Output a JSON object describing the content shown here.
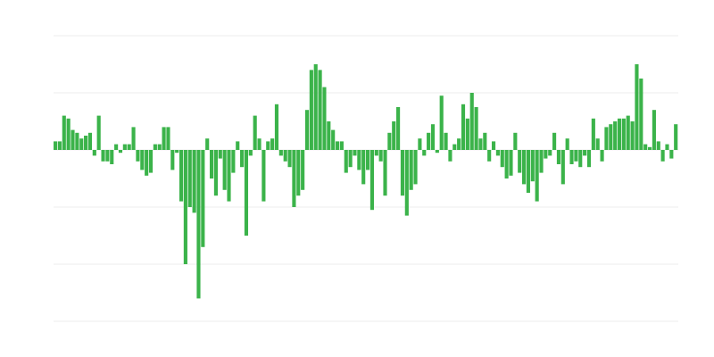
{
  "chart_data": {
    "type": "bar",
    "color": "#3bb34a",
    "grid": true,
    "ylim": [
      -3,
      2
    ],
    "yticks": [
      -3,
      -2,
      -1,
      0,
      1,
      2
    ],
    "values": [
      0.15,
      0.15,
      0.6,
      0.55,
      0.35,
      0.3,
      0.2,
      0.25,
      0.3,
      -0.1,
      0.6,
      -0.2,
      -0.2,
      -0.25,
      0.1,
      -0.05,
      0.1,
      0.1,
      0.4,
      -0.2,
      -0.35,
      -0.45,
      -0.4,
      0.1,
      0.1,
      0.4,
      0.4,
      -0.35,
      -0.05,
      -0.9,
      -2.0,
      -1.0,
      -1.1,
      -2.6,
      -1.7,
      0.2,
      -0.5,
      -0.8,
      -0.15,
      -0.7,
      -0.9,
      -0.4,
      0.15,
      -0.3,
      -1.5,
      -0.1,
      0.6,
      0.2,
      -0.9,
      0.15,
      0.2,
      0.8,
      -0.1,
      -0.2,
      -0.3,
      -1.0,
      -0.8,
      -0.7,
      0.7,
      1.4,
      1.5,
      1.4,
      1.1,
      0.5,
      0.35,
      0.15,
      0.15,
      -0.4,
      -0.3,
      -0.1,
      -0.35,
      -0.6,
      -0.35,
      -1.05,
      -0.1,
      -0.2,
      -0.8,
      0.3,
      0.5,
      0.75,
      -0.8,
      -1.15,
      -0.7,
      -0.6,
      0.2,
      -0.1,
      0.3,
      0.45,
      -0.05,
      0.95,
      0.3,
      -0.2,
      0.1,
      0.2,
      0.8,
      0.55,
      1.0,
      0.75,
      0.2,
      0.3,
      -0.2,
      0.15,
      -0.1,
      -0.3,
      -0.5,
      -0.45,
      0.3,
      -0.4,
      -0.6,
      -0.75,
      -0.55,
      -0.9,
      -0.4,
      -0.15,
      -0.1,
      0.3,
      -0.25,
      -0.6,
      0.2,
      -0.25,
      -0.2,
      -0.3,
      -0.1,
      -0.3,
      0.55,
      0.2,
      -0.2,
      0.4,
      0.45,
      0.5,
      0.55,
      0.55,
      0.6,
      0.5,
      1.5,
      1.25,
      0.1,
      0.05,
      0.7,
      0.15,
      -0.2,
      0.1,
      -0.15,
      0.45
    ]
  }
}
